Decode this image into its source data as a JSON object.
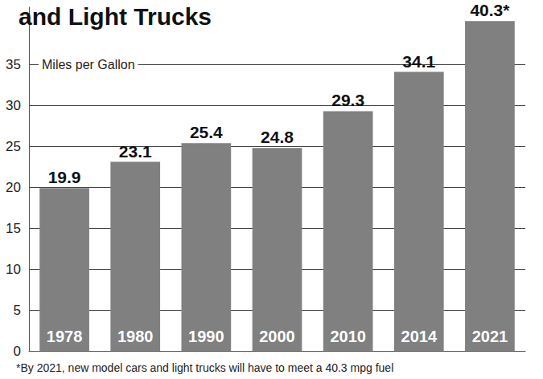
{
  "chart_data": {
    "type": "bar",
    "title": "and Light Trucks",
    "y_label": "Miles per Gallon",
    "categories": [
      "1978",
      "1980",
      "1990",
      "2000",
      "2010",
      "2014",
      "2021"
    ],
    "values": [
      19.9,
      23.1,
      25.4,
      24.8,
      29.3,
      34.1,
      40.3
    ],
    "value_labels": [
      "19.9",
      "23.1",
      "25.4",
      "24.8",
      "29.3",
      "34.1",
      "40.3*"
    ],
    "data_labels": true,
    "color": "#808080",
    "ylim": [
      0,
      42
    ],
    "yticks": [
      0,
      5,
      10,
      15,
      20,
      25,
      30,
      35
    ],
    "grid": true,
    "footnote": "*By 2021, new model cars and light trucks will have to meet a 40.3 mpg fuel"
  }
}
